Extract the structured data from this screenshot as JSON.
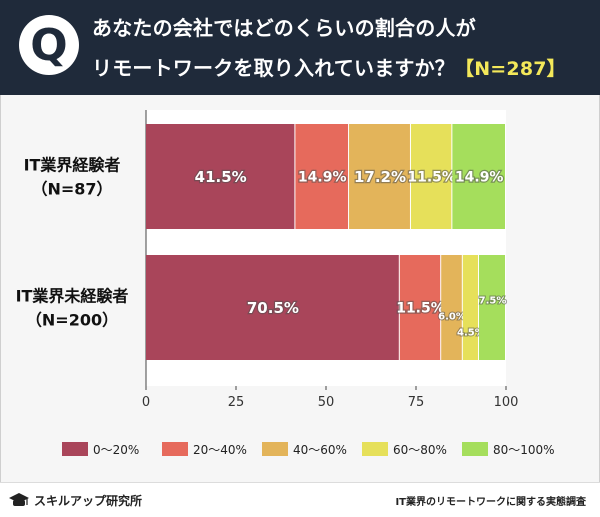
{
  "header": {
    "question_line1": "あなたの会社ではどのくらいの割合の人が",
    "question_line2": "リモートワークを取り入れていますか？",
    "n_badge": "【N=287】",
    "q_letter": "Q"
  },
  "footer": {
    "brand": "スキルアップ研究所",
    "source": "IT業界のリモートワークに関する実態調査"
  },
  "colors": {
    "header_bg": "#1f2a3a",
    "seg0": "#a9455a",
    "seg1": "#e66a5c",
    "seg2": "#e3b45a",
    "seg3": "#e6e05a",
    "seg4": "#a5de5c"
  },
  "chart_data": {
    "type": "bar",
    "orientation": "horizontal",
    "stacked": true,
    "categories": [
      [
        "IT業界経験者",
        "（N=87）"
      ],
      [
        "IT業界未経験者",
        "（N=200）"
      ]
    ],
    "series": [
      {
        "name": "0～20%",
        "values": [
          41.5,
          70.5
        ],
        "labels": [
          "41.5%",
          "70.5%"
        ]
      },
      {
        "name": "20～40%",
        "values": [
          14.9,
          11.5
        ],
        "labels": [
          "14.9%",
          "11.5%"
        ]
      },
      {
        "name": "40～60%",
        "values": [
          17.2,
          6.0
        ],
        "labels": [
          "17.2%",
          "6.0%"
        ]
      },
      {
        "name": "60～80%",
        "values": [
          11.5,
          4.5
        ],
        "labels": [
          "11.5%",
          "4.5%"
        ]
      },
      {
        "name": "80～100%",
        "values": [
          14.9,
          7.5
        ],
        "labels": [
          "14.9%",
          "7.5%"
        ]
      }
    ],
    "xlim": [
      0,
      100
    ],
    "xticks": [
      "0",
      "25",
      "50",
      "75",
      "100"
    ],
    "legend": "bottom",
    "title": "",
    "xlabel": "",
    "ylabel": ""
  }
}
